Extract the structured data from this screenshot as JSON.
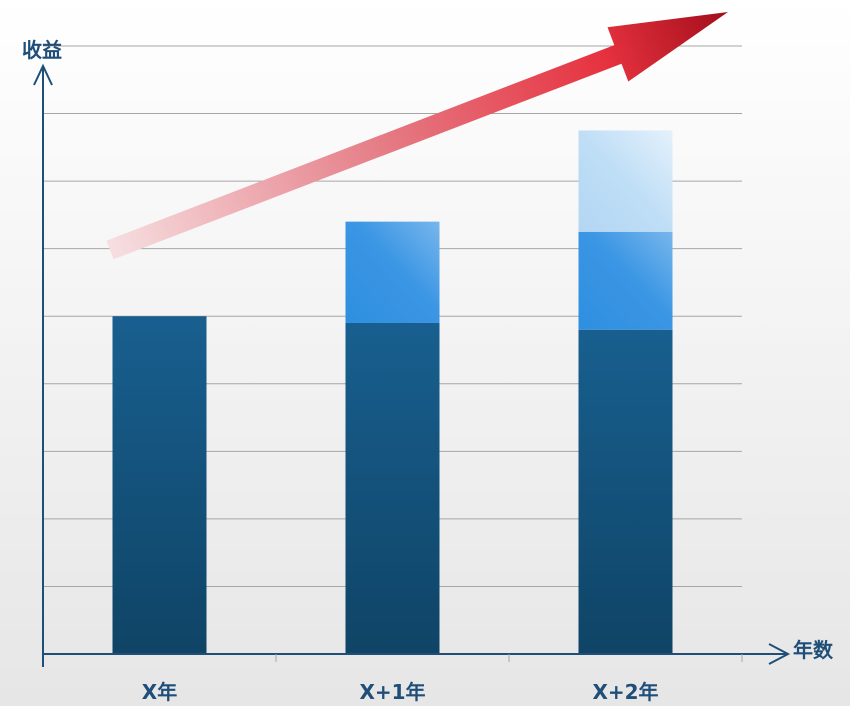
{
  "chart_data": {
    "type": "bar",
    "stacked": true,
    "title": "",
    "xlabel": "年数",
    "ylabel": "收益",
    "categories": [
      "X年",
      "X+1年",
      "X+2年"
    ],
    "series": [
      {
        "values": [
          5.0,
          4.9,
          4.8
        ]
      },
      {
        "values": [
          0,
          1.5,
          1.45
        ]
      },
      {
        "values": [
          0,
          0,
          1.5
        ]
      }
    ],
    "ylim": [
      0,
      9
    ],
    "y_tick_labels": false,
    "grid": true,
    "legend": "none",
    "trend_arrow": true,
    "colors": {
      "axis": "#1f4e79",
      "grid": "#a6a6a6",
      "base": "#155785",
      "middle": "#2e8fe0",
      "top": "#bcdcf5",
      "arrow_start": "#f3d3d6",
      "arrow_end": "#b50f1e"
    }
  }
}
